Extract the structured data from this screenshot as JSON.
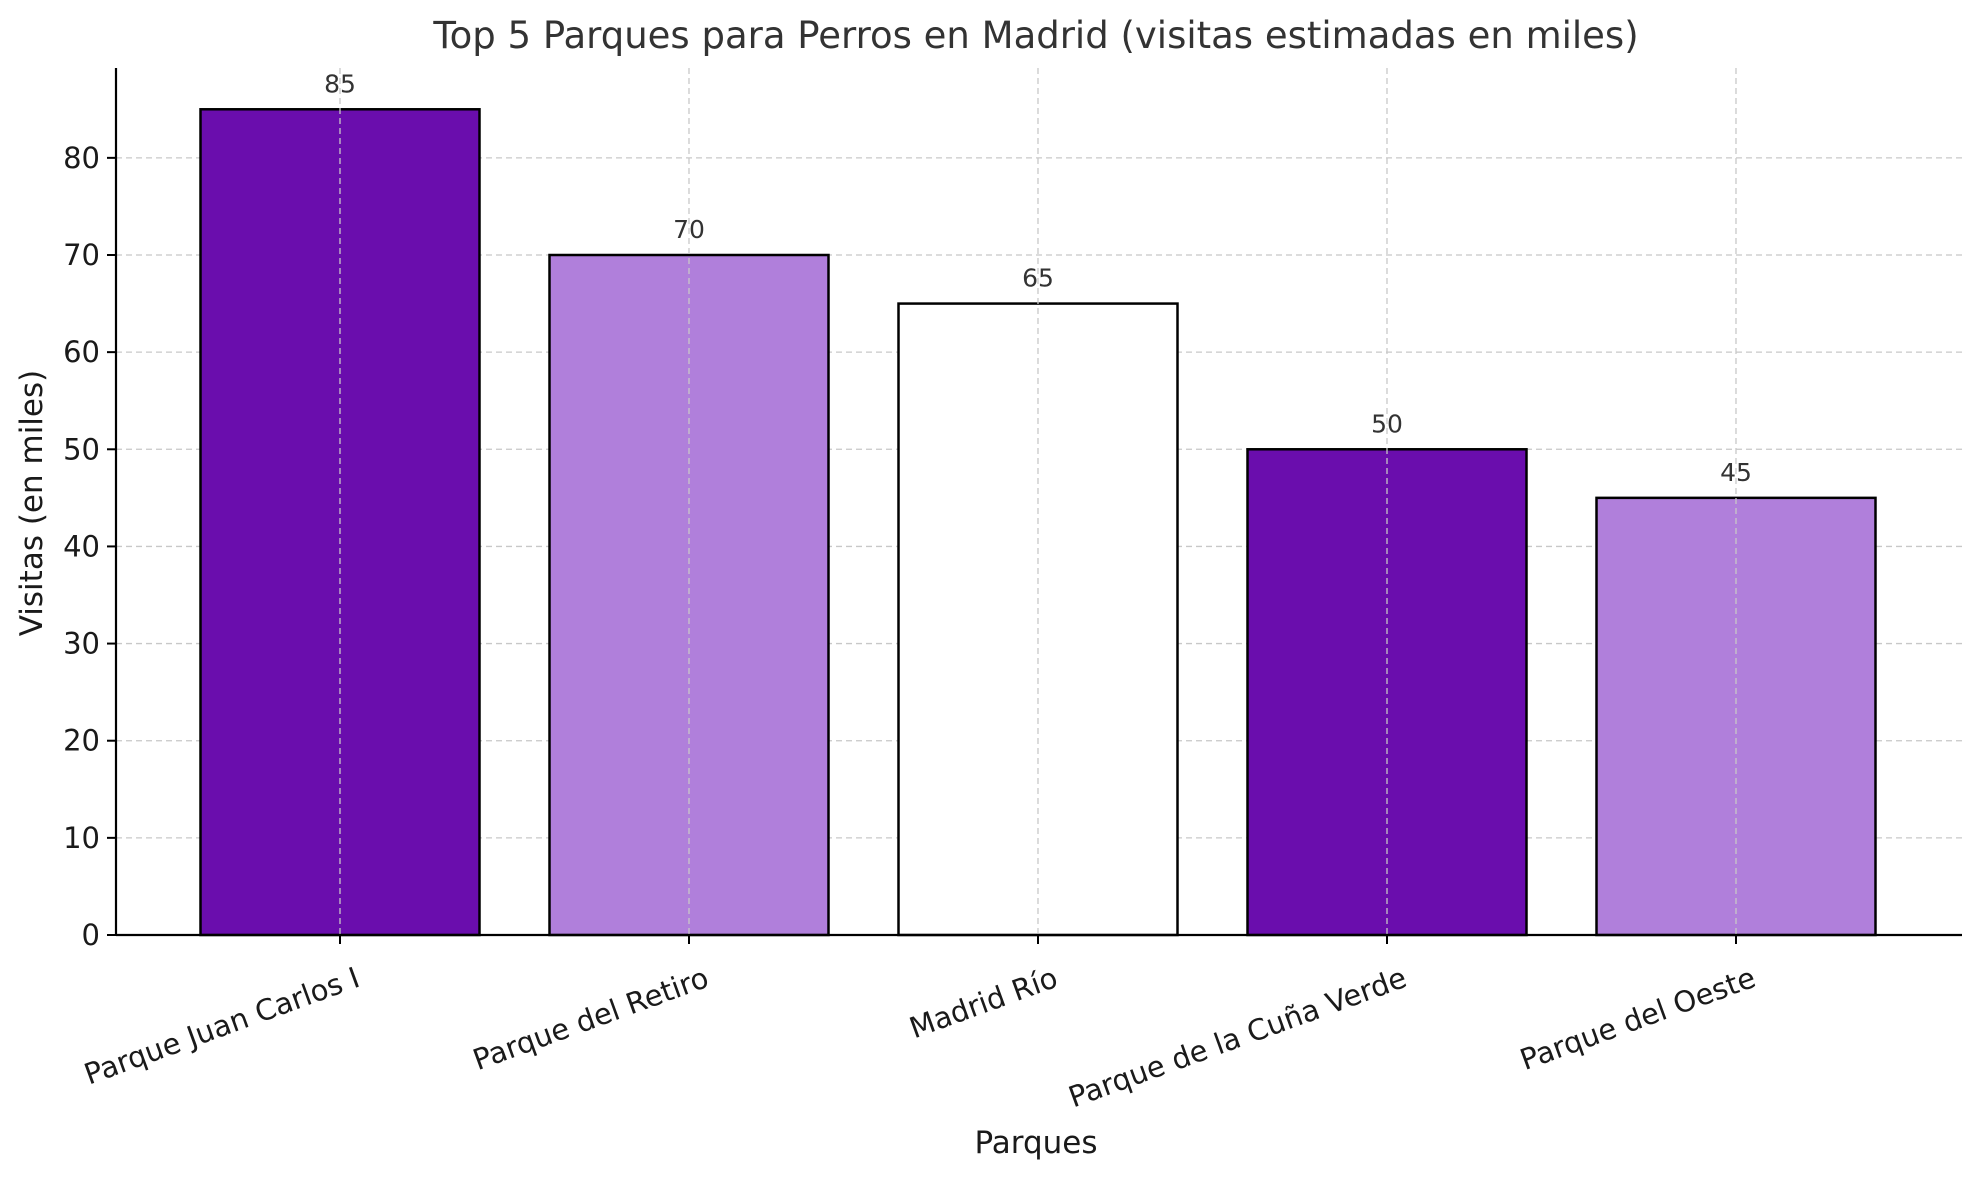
{
  "chart_data": {
    "type": "bar",
    "title": "Top 5 Parques para Perros en Madrid (visitas estimadas en miles)",
    "xlabel": "Parques",
    "ylabel": "Visitas (en miles)",
    "categories": [
      "Parque Juan Carlos I",
      "Parque del Retiro",
      "Madrid Río",
      "Parque de la Cuña Verde",
      "Parque del Oeste"
    ],
    "values": [
      85,
      70,
      65,
      50,
      45
    ],
    "bar_colors": [
      "#6a0dad",
      "#b07fdb",
      "#ffffff",
      "#6a0dad",
      "#b07fdb"
    ],
    "edge_color": "#000000",
    "ylim": [
      0,
      89.25
    ],
    "yticks": [
      0,
      10,
      20,
      30,
      40,
      50,
      60,
      70,
      80
    ],
    "grid": true,
    "grid_style": "dashed",
    "grid_color": "#c8c8c8",
    "xtick_rotation_deg": -20,
    "data_labels": [
      "85",
      "70",
      "65",
      "50",
      "45"
    ]
  }
}
